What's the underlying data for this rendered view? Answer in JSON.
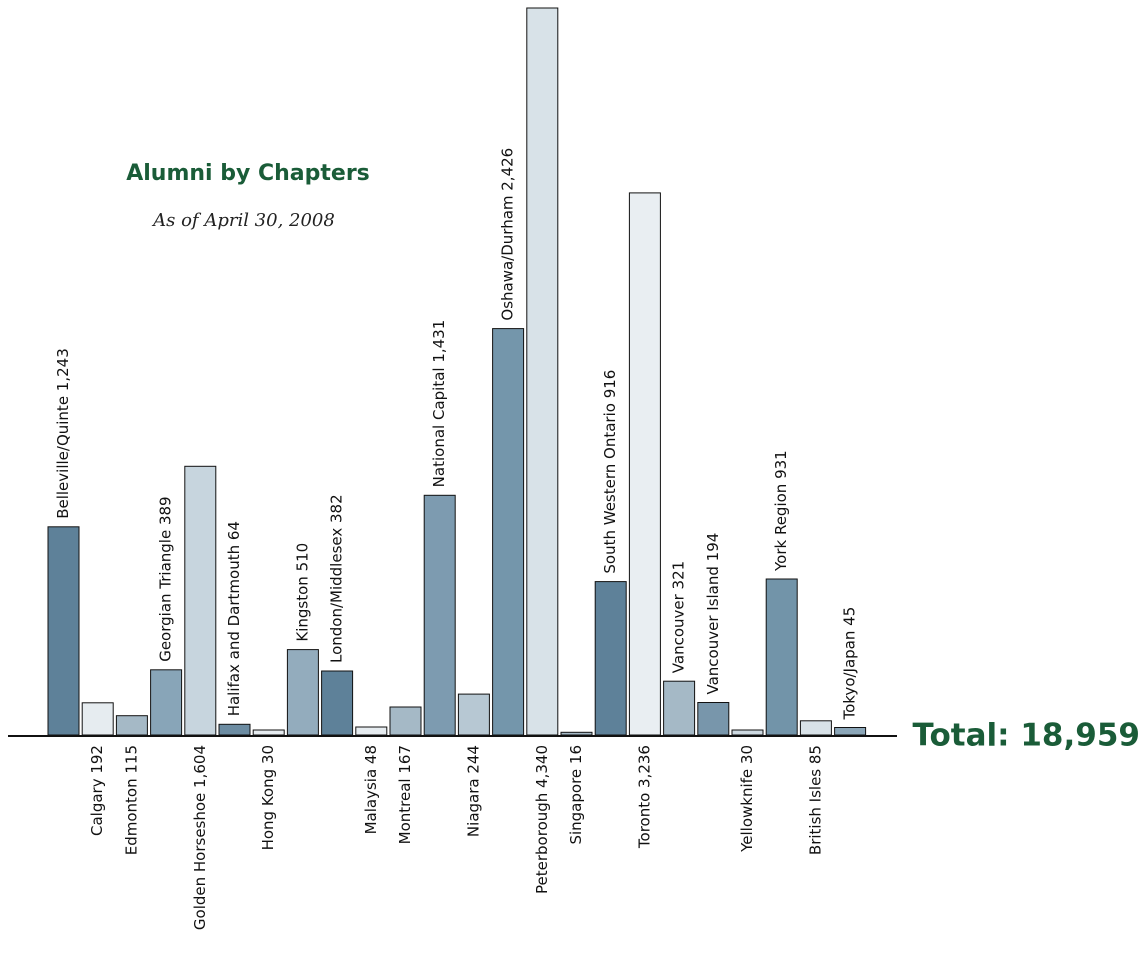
{
  "chart_data": {
    "type": "bar",
    "title": "Alumni by Chapters",
    "subtitle": "As of April 30, 2008",
    "total_label": "Total: 18,959",
    "colors": {
      "title": "#1a5c38",
      "bar_stroke": "#111111",
      "axis": "#111111"
    },
    "ylim": [
      0,
      4340
    ],
    "bars": [
      {
        "name": "Belleville/Quinte",
        "value_text": "1,243",
        "value": 1243,
        "label_pos": "top",
        "color": "#5e8199"
      },
      {
        "name": "Calgary",
        "value_text": "192",
        "value": 192,
        "label_pos": "bottom",
        "color": "#e6ecf0"
      },
      {
        "name": "Edmonton",
        "value_text": "115",
        "value": 115,
        "label_pos": "bottom",
        "color": "#a5b9c6"
      },
      {
        "name": "Georgian Triangle",
        "value_text": "389",
        "value": 389,
        "label_pos": "top",
        "color": "#88a5b8"
      },
      {
        "name": "Golden Horseshoe",
        "value_text": "1,604",
        "value": 1604,
        "label_pos": "bottom",
        "color": "#c7d5de"
      },
      {
        "name": "Halifax and Dartmouth",
        "value_text": "64",
        "value": 64,
        "label_pos": "top",
        "color": "#6c8ca2"
      },
      {
        "name": "Hong Kong",
        "value_text": "30",
        "value": 30,
        "label_pos": "bottom",
        "color": "#e6ecf0"
      },
      {
        "name": "Kingston",
        "value_text": "510",
        "value": 510,
        "label_pos": "top",
        "color": "#93acbd"
      },
      {
        "name": "London/Middlesex",
        "value_text": "382",
        "value": 382,
        "label_pos": "top",
        "color": "#5e8199"
      },
      {
        "name": "Malaysia",
        "value_text": "48",
        "value": 48,
        "label_pos": "bottom",
        "color": "#e6ecf0"
      },
      {
        "name": "Montreal",
        "value_text": "167",
        "value": 167,
        "label_pos": "bottom",
        "color": "#a5b9c6"
      },
      {
        "name": "National Capital",
        "value_text": "1,431",
        "value": 1431,
        "label_pos": "top",
        "color": "#7d9bb0"
      },
      {
        "name": "Niagara",
        "value_text": "244",
        "value": 244,
        "label_pos": "bottom",
        "color": "#b7c8d3"
      },
      {
        "name": "Oshawa/Durham",
        "value_text": "2,426",
        "value": 2426,
        "label_pos": "top",
        "color": "#7496ab"
      },
      {
        "name": "Peterborough",
        "value_text": "4,340",
        "value": 4340,
        "label_pos": "bottom",
        "color": "#d8e2e8"
      },
      {
        "name": "Singapore",
        "value_text": "16",
        "value": 16,
        "label_pos": "bottom",
        "color": "#a5b9c6"
      },
      {
        "name": "South Western Ontario",
        "value_text": "916",
        "value": 916,
        "label_pos": "top",
        "color": "#5e8199"
      },
      {
        "name": "Toronto",
        "value_text": "3,236",
        "value": 3236,
        "label_pos": "bottom",
        "color": "#e9eef2"
      },
      {
        "name": "Vancouver",
        "value_text": "321",
        "value": 321,
        "label_pos": "top",
        "color": "#a5b9c6"
      },
      {
        "name": "Vancouver Island",
        "value_text": "194",
        "value": 194,
        "label_pos": "top",
        "color": "#7896ab"
      },
      {
        "name": "Yellowknife",
        "value_text": "30",
        "value": 30,
        "label_pos": "bottom",
        "color": "#cdd9e1"
      },
      {
        "name": "York Region",
        "value_text": "931",
        "value": 931,
        "label_pos": "top",
        "color": "#7294a9"
      },
      {
        "name": "British Isles",
        "value_text": "85",
        "value": 85,
        "label_pos": "bottom",
        "color": "#d8e2e8"
      },
      {
        "name": "Tokyo/Japan",
        "value_text": "45",
        "value": 45,
        "label_pos": "top",
        "color": "#8ba6b8"
      }
    ]
  }
}
